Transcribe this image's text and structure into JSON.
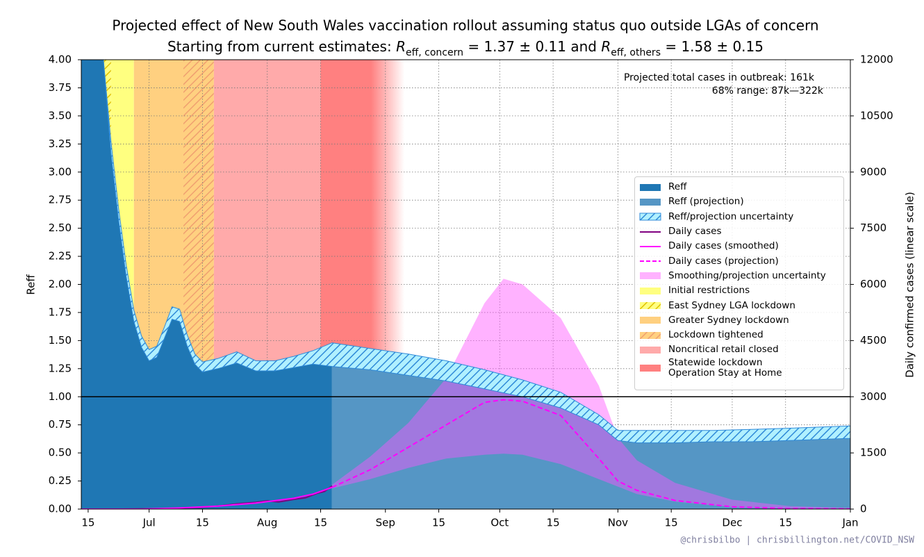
{
  "chart_data": {
    "type": "line",
    "title": "Projected effect of New South Wales vaccination rollout assuming status quo outside LGAs of concern",
    "subtitle_parts": [
      "Starting from current estimates: ",
      "R",
      "eff, concern",
      " = 1.37 ± 0.11 and ",
      "R",
      "eff, others",
      " = 1.58 ± 0.15"
    ],
    "ylabel": "Reff",
    "y2label": "Daily confirmed cases (linear scale)",
    "annotations": [
      "Projected total cases in outbreak:  161k",
      "68% range:  87k—322k"
    ],
    "footer": "@chrisbilbo | chrisbillington.net/COVID_NSW",
    "xlim": [
      164.2,
      366
    ],
    "xticks": [
      {
        "value": 166,
        "label": "15"
      },
      {
        "value": 182,
        "label": "Jul"
      },
      {
        "value": 196,
        "label": "15"
      },
      {
        "value": 213,
        "label": "Aug"
      },
      {
        "value": 227,
        "label": "15"
      },
      {
        "value": 244,
        "label": "Sep"
      },
      {
        "value": 258,
        "label": "15"
      },
      {
        "value": 274,
        "label": "Oct"
      },
      {
        "value": 288,
        "label": "15"
      },
      {
        "value": 305,
        "label": "Nov"
      },
      {
        "value": 319,
        "label": "15"
      },
      {
        "value": 335,
        "label": "Dec"
      },
      {
        "value": 349,
        "label": "15"
      },
      {
        "value": 366,
        "label": "Jan"
      }
    ],
    "ylim": [
      0,
      4
    ],
    "yticks": [
      {
        "value": 0,
        "label": "0.00"
      },
      {
        "value": 0.25,
        "label": "0.25"
      },
      {
        "value": 0.5,
        "label": "0.50"
      },
      {
        "value": 0.75,
        "label": "0.75"
      },
      {
        "value": 1,
        "label": "1.00"
      },
      {
        "value": 1.25,
        "label": "1.25"
      },
      {
        "value": 1.5,
        "label": "1.50"
      },
      {
        "value": 1.75,
        "label": "1.75"
      },
      {
        "value": 2,
        "label": "2.00"
      },
      {
        "value": 2.25,
        "label": "2.25"
      },
      {
        "value": 2.5,
        "label": "2.50"
      },
      {
        "value": 2.75,
        "label": "2.75"
      },
      {
        "value": 3,
        "label": "3.00"
      },
      {
        "value": 3.25,
        "label": "3.25"
      },
      {
        "value": 3.5,
        "label": "3.50"
      },
      {
        "value": 3.75,
        "label": "3.75"
      },
      {
        "value": 4,
        "label": "4.00"
      }
    ],
    "y2lim": [
      0,
      12000
    ],
    "y2ticks": [
      0,
      1500,
      3000,
      4500,
      6000,
      7500,
      9000,
      10500,
      12000
    ],
    "grid": true,
    "reference_line": 1,
    "legend": "center right",
    "series": [
      {
        "name": "Reff",
        "style": "area",
        "color": "#1f77b4",
        "x": [
          164,
          170,
          172,
          174,
          176,
          178,
          180,
          182,
          184,
          186,
          188,
          190,
          192,
          194,
          196,
          200,
          205,
          210,
          215,
          220,
          225,
          230
        ],
        "values": [
          4.0,
          4.0,
          3.2,
          2.6,
          2.1,
          1.7,
          1.47,
          1.35,
          1.38,
          1.55,
          1.72,
          1.7,
          1.48,
          1.32,
          1.25,
          1.28,
          1.33,
          1.26,
          1.26,
          1.29,
          1.32,
          1.3
        ]
      },
      {
        "name": "Reff (projection)",
        "style": "area",
        "color": "#5596c5",
        "x": [
          230,
          240,
          250,
          260,
          270,
          280,
          290,
          300,
          305,
          310,
          320,
          330,
          340,
          350,
          366
        ],
        "values": [
          1.3,
          1.27,
          1.22,
          1.17,
          1.1,
          1.03,
          0.93,
          0.78,
          0.64,
          0.62,
          0.62,
          0.63,
          0.63,
          0.64,
          0.66
        ]
      },
      {
        "name": "Reff/projection uncertainty",
        "style": "band",
        "color": "#b0f0ff",
        "hatch": "#2f8ad8",
        "x": [
          164,
          170,
          172,
          174,
          176,
          178,
          180,
          182,
          184,
          186,
          188,
          190,
          192,
          194,
          196,
          200,
          205,
          210,
          215,
          220,
          225,
          230,
          240,
          250,
          260,
          270,
          280,
          290,
          300,
          305,
          310,
          320,
          330,
          340,
          350,
          366
        ],
        "upper": [
          4.0,
          4.0,
          3.27,
          2.67,
          2.17,
          1.77,
          1.54,
          1.42,
          1.45,
          1.62,
          1.8,
          1.78,
          1.55,
          1.38,
          1.31,
          1.34,
          1.4,
          1.32,
          1.32,
          1.36,
          1.41,
          1.48,
          1.43,
          1.38,
          1.32,
          1.24,
          1.15,
          1.04,
          0.84,
          0.7,
          0.7,
          0.7,
          0.7,
          0.71,
          0.72,
          0.74
        ],
        "lower": [
          4.0,
          4.0,
          3.17,
          2.57,
          2.07,
          1.67,
          1.44,
          1.32,
          1.35,
          1.52,
          1.69,
          1.67,
          1.45,
          1.29,
          1.22,
          1.25,
          1.3,
          1.23,
          1.23,
          1.26,
          1.29,
          1.27,
          1.24,
          1.19,
          1.14,
          1.07,
          1.0,
          0.9,
          0.75,
          0.61,
          0.59,
          0.59,
          0.6,
          0.6,
          0.61,
          0.63
        ]
      },
      {
        "name": "Daily cases",
        "style": "line",
        "color": "#800080",
        "axis": "y2",
        "x": [
          175,
          185,
          195,
          200,
          205,
          210,
          213,
          216,
          220,
          223,
          226,
          228,
          230
        ],
        "values": [
          0,
          10,
          40,
          80,
          140,
          180,
          220,
          190,
          260,
          300,
          420,
          470,
          620
        ]
      },
      {
        "name": "Daily cases (smoothed)",
        "style": "line",
        "color": "#ff00ff",
        "axis": "y2",
        "x": [
          164,
          180,
          190,
          200,
          210,
          220,
          225,
          230
        ],
        "values": [
          0,
          0,
          30,
          80,
          160,
          290,
          400,
          580
        ]
      },
      {
        "name": "Daily cases (projection)",
        "style": "dashed",
        "color": "#ff00ff",
        "axis": "y2",
        "x": [
          230,
          240,
          250,
          260,
          270,
          275,
          280,
          290,
          300,
          305,
          310,
          320,
          335,
          350,
          366
        ],
        "values": [
          580,
          1050,
          1650,
          2250,
          2850,
          2920,
          2880,
          2500,
          1350,
          750,
          500,
          230,
          60,
          15,
          3
        ]
      },
      {
        "name": "Smoothing/projection uncertainty",
        "style": "band",
        "color": "#ff55ff",
        "opacity": 0.45,
        "axis": "y2",
        "x": [
          230,
          240,
          250,
          260,
          270,
          275,
          280,
          290,
          300,
          305,
          310,
          320,
          335,
          350,
          366
        ],
        "upper": [
          650,
          1400,
          2300,
          3500,
          5500,
          6150,
          6000,
          5100,
          3300,
          1900,
          1300,
          700,
          250,
          80,
          30
        ],
        "lower": [
          550,
          800,
          1100,
          1350,
          1450,
          1480,
          1450,
          1200,
          800,
          600,
          400,
          200,
          50,
          10,
          0
        ]
      }
    ],
    "spans": [
      {
        "name": "Initial restrictions",
        "color": "#ffff80",
        "start": 172,
        "end": 178
      },
      {
        "name": "East Sydney LGA lockdown",
        "color": "#ffff80",
        "hatch": "#e0c000",
        "start": 170,
        "end": 172
      },
      {
        "name": "Greater Sydney lockdown",
        "color": "#ffd080",
        "start": 178,
        "end": 191
      },
      {
        "name": "Lockdown tightened",
        "color": "#ffd080",
        "hatch": "#f0a070",
        "start": 191,
        "end": 199
      },
      {
        "name": "Noncritical retail closed",
        "color": "#ffaaaa",
        "start": 199,
        "end": 227
      },
      {
        "name": "Statewide lockdown\nOperation Stay at Home",
        "color": "#ff8080",
        "fade": true,
        "start": 227,
        "end": 249
      }
    ]
  }
}
